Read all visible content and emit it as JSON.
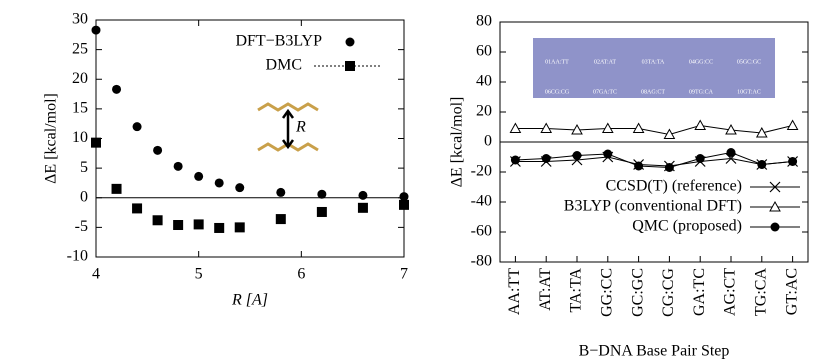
{
  "chart_data": [
    {
      "type": "scatter",
      "x_label": "R [A]",
      "y_label": "ΔE [kcal/mol]",
      "annotation": "R",
      "x": [
        4.0,
        4.2,
        4.4,
        4.6,
        4.8,
        5.0,
        5.2,
        5.4,
        5.8,
        6.2,
        6.6,
        7.0
      ],
      "xlim": [
        4,
        7
      ],
      "xticks": [
        4,
        5,
        6,
        7
      ],
      "ylim": [
        -10,
        30
      ],
      "yticks": [
        -10,
        -5,
        0,
        5,
        10,
        15,
        20,
        25,
        30
      ],
      "zero_line": true,
      "legend": "upper right",
      "series": [
        {
          "name": "DFT−B3LYP",
          "color": "#000000",
          "marker": "circle",
          "values": [
            28.3,
            18.3,
            12.0,
            8.0,
            5.3,
            3.6,
            2.5,
            1.7,
            0.9,
            0.6,
            0.4,
            0.2
          ]
        },
        {
          "name": "DMC",
          "color": "#000000",
          "marker": "square",
          "values": [
            9.3,
            1.5,
            -1.8,
            -3.8,
            -4.6,
            -4.5,
            -5.1,
            -5.0,
            -3.6,
            -2.4,
            -1.7,
            -1.2
          ]
        }
      ]
    },
    {
      "type": "line",
      "x_label": "B−DNA Base Pair Step",
      "y_label": "ΔE [kcal/mol]",
      "categories": [
        "AA:TT",
        "AT:AT",
        "TA:TA",
        "GG:CC",
        "GC:GC",
        "CG:CG",
        "GA:TC",
        "AG:CT",
        "TG:CA",
        "GT:AC"
      ],
      "inset_labels": [
        "01AA:TT",
        "02AT:AT",
        "03TA:TA",
        "04GG:CC",
        "05GC:GC",
        "06CG:CG",
        "07GA:TC",
        "08AG:CT",
        "09TG:CA",
        "10GT:AC"
      ],
      "ylim": [
        -80,
        80
      ],
      "yticks": [
        -80,
        -60,
        -40,
        -20,
        0,
        20,
        40,
        60,
        80
      ],
      "zero_line": true,
      "legend": "lower right",
      "series": [
        {
          "name": "CCSD(T) (reference)",
          "color": "#000000",
          "marker": "x",
          "values": [
            -13,
            -13,
            -12,
            -10,
            -15,
            -16,
            -13,
            -11,
            -15,
            -13
          ]
        },
        {
          "name": "B3LYP (conventional DFT)",
          "color": "#000000",
          "marker": "triangle",
          "values": [
            9,
            9,
            8,
            9,
            9,
            5,
            11,
            8,
            6,
            11
          ]
        },
        {
          "name": "QMC (proposed)",
          "color": "#000000",
          "marker": "circle",
          "values": [
            -12,
            -11,
            -9,
            -8,
            -16,
            -17,
            -11,
            -7,
            -15,
            -13
          ]
        }
      ]
    }
  ]
}
